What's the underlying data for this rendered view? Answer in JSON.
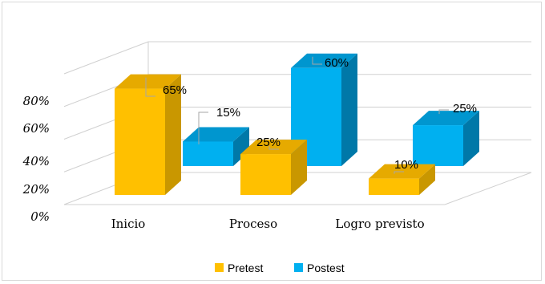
{
  "chart_data": {
    "type": "bar",
    "style": "3d-clustered-column",
    "categories": [
      "Inicio",
      "Proceso",
      "Logro previsto"
    ],
    "series": [
      {
        "name": "Pretest",
        "values": [
          65,
          25,
          10
        ],
        "labels": [
          "65%",
          "25%",
          "10%"
        ],
        "color": "#FFC000",
        "side": "#C99700",
        "top": "#E6AA00"
      },
      {
        "name": "Postest",
        "values": [
          15,
          60,
          25
        ],
        "labels": [
          "15%",
          "60%",
          "25%"
        ],
        "color": "#00B0F0",
        "side": "#0078A8",
        "top": "#0096CF"
      }
    ],
    "y_ticks": [
      "0%",
      "20%",
      "40%",
      "60%",
      "80%"
    ],
    "ylim": [
      0,
      80
    ],
    "grid": true,
    "legend_position": "bottom"
  }
}
